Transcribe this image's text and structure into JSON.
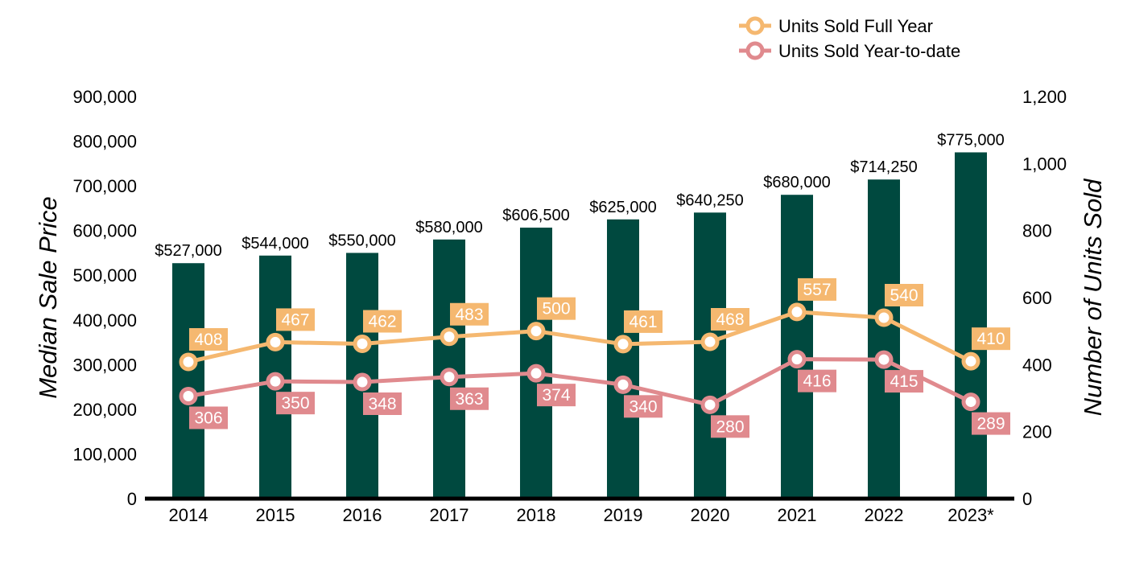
{
  "chart_data": {
    "type": "bar",
    "categories": [
      "2014",
      "2015",
      "2016",
      "2017",
      "2018",
      "2019",
      "2020",
      "2021",
      "2022",
      "2023*"
    ],
    "series": [
      {
        "name": "",
        "type": "bar",
        "axis": "left",
        "values": [
          527000,
          544000,
          550000,
          580000,
          606500,
          625000,
          640250,
          680000,
          714250,
          775000
        ],
        "labels": [
          "$527,000",
          "$544,000",
          "$550,000",
          "$580,000",
          "$606,500",
          "$625,000",
          "$640,250",
          "$680,000",
          "$714,250",
          "$775,000"
        ],
        "color": "#00493f"
      },
      {
        "name": "Units Sold Full Year",
        "type": "line",
        "axis": "right",
        "values": [
          408,
          467,
          462,
          483,
          500,
          461,
          468,
          557,
          540,
          410
        ],
        "labels": [
          "408",
          "467",
          "462",
          "483",
          "500",
          "461",
          "468",
          "557",
          "540",
          "410"
        ],
        "color": "#f5b870"
      },
      {
        "name": "Units Sold Year-to-date",
        "type": "line",
        "axis": "right",
        "values": [
          306,
          350,
          348,
          363,
          374,
          340,
          280,
          416,
          415,
          289
        ],
        "labels": [
          "306",
          "350",
          "348",
          "363",
          "374",
          "340",
          "280",
          "416",
          "415",
          "289"
        ],
        "color": "#e08a8e"
      }
    ],
    "title": "",
    "xlabel": "",
    "ylabel": "Median Sale Price",
    "y2label": "Number of Units Sold",
    "ylim": [
      0,
      900000
    ],
    "y2lim": [
      0,
      1200
    ],
    "yticks": [
      "0",
      "100,000",
      "200,000",
      "300,000",
      "400,000",
      "500,000",
      "600,000",
      "700,000",
      "800,000",
      "900,000"
    ],
    "y2ticks": [
      "0",
      "200",
      "400",
      "600",
      "800",
      "1,000",
      "1,200"
    ],
    "grid": false,
    "legend_position": "top-right"
  }
}
